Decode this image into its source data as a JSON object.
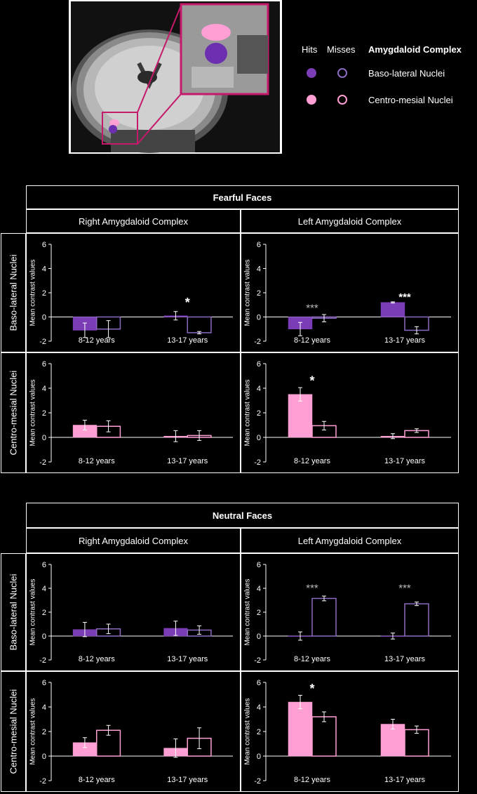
{
  "legend": {
    "hits_label": "Hits",
    "misses_label": "Misses",
    "title": "Amygdaloid Complex",
    "rows": [
      {
        "label": "Baso-lateral Nuclei",
        "color": "#7b3db5"
      },
      {
        "label": "Centro-mesial Nuclei",
        "color": "#ff9fd4"
      }
    ]
  },
  "colors": {
    "baso": "#7b3db5",
    "baso_outline": "#8c6ac0",
    "centro": "#ff9fd4",
    "white": "#ffffff"
  },
  "sections": [
    {
      "title": "Fearful Faces",
      "right_title": "Right Amygdaloid Complex",
      "left_title": "Left Amygdaloid Complex"
    },
    {
      "title": "Neutral Faces",
      "right_title": "Right Amygdaloid Complex",
      "left_title": "Left Amygdaloid Complex"
    }
  ],
  "row_labels": [
    "Baso-lateral Nuclei",
    "Centro-mesial Nuclei"
  ],
  "chart_data": [
    {
      "type": "bar",
      "section": "Fearful Faces",
      "hemisphere": "Right Amygdaloid Complex",
      "nucleus": "Baso-lateral Nuclei",
      "ylabel": "Mean contrast values",
      "ylim": [
        -2,
        6
      ],
      "yticks": [
        "6",
        "4",
        "2",
        "0",
        "-2"
      ],
      "categories": [
        "8-12 years",
        "13-17 years"
      ],
      "series": [
        {
          "name": "Hits",
          "values": [
            -1.1,
            0.1
          ],
          "errors": [
            0.6,
            0.35
          ]
        },
        {
          "name": "Misses",
          "values": [
            -1.0,
            -1.3
          ],
          "errors": [
            0.7,
            0.1
          ]
        }
      ],
      "annotations": [
        {
          "category": 1,
          "text": "*",
          "value": 1.2
        }
      ]
    },
    {
      "type": "bar",
      "section": "Fearful Faces",
      "hemisphere": "Left Amygdaloid Complex",
      "nucleus": "Baso-lateral Nuclei",
      "ylabel": "Mean contrast values",
      "ylim": [
        -2,
        6
      ],
      "yticks": [
        "6",
        "4",
        "2",
        "0",
        "-2"
      ],
      "categories": [
        "8-12 years",
        "13-17 years"
      ],
      "series": [
        {
          "name": "Hits",
          "values": [
            -1.0,
            1.2
          ],
          "errors": [
            0.55,
            0.05
          ]
        },
        {
          "name": "Misses",
          "values": [
            -0.1,
            -1.1
          ],
          "errors": [
            0.3,
            0.3
          ]
        }
      ],
      "annotations": [
        {
          "category": 0,
          "text": "***",
          "value": 0.8,
          "color": "#bbbbbb"
        },
        {
          "category": 1,
          "text": "***",
          "value": 1.7
        }
      ]
    },
    {
      "type": "bar",
      "section": "Fearful Faces",
      "hemisphere": "Right Amygdaloid Complex",
      "nucleus": "Centro-mesial Nuclei",
      "ylabel": "Mean contrast values",
      "ylim": [
        -2,
        6
      ],
      "yticks": [
        "6",
        "4",
        "2",
        "0",
        "-2"
      ],
      "categories": [
        "8-12 years",
        "13-17 years"
      ],
      "series": [
        {
          "name": "Hits",
          "values": [
            1.0,
            0.1
          ],
          "errors": [
            0.4,
            0.45
          ]
        },
        {
          "name": "Misses",
          "values": [
            0.9,
            0.15
          ],
          "errors": [
            0.45,
            0.4
          ]
        }
      ],
      "annotations": []
    },
    {
      "type": "bar",
      "section": "Fearful Faces",
      "hemisphere": "Left Amygdaloid Complex",
      "nucleus": "Centro-mesial Nuclei",
      "ylabel": "Mean contrast values",
      "ylim": [
        -2,
        6
      ],
      "yticks": [
        "6",
        "4",
        "2",
        "0",
        "-2"
      ],
      "categories": [
        "8-12 years",
        "13-17 years"
      ],
      "series": [
        {
          "name": "Hits",
          "values": [
            3.5,
            0.1
          ],
          "errors": [
            0.55,
            0.2
          ]
        },
        {
          "name": "Misses",
          "values": [
            0.95,
            0.55
          ],
          "errors": [
            0.35,
            0.15
          ]
        }
      ],
      "annotations": [
        {
          "category": 0,
          "text": "*",
          "value": 4.6
        }
      ]
    },
    {
      "type": "bar",
      "section": "Neutral Faces",
      "hemisphere": "Right Amygdaloid Complex",
      "nucleus": "Baso-lateral Nuclei",
      "ylabel": "Mean contrast values",
      "ylim": [
        -2,
        6
      ],
      "yticks": [
        "6",
        "4",
        "2",
        "0",
        "-2"
      ],
      "categories": [
        "8-12 years",
        "13-17 years"
      ],
      "series": [
        {
          "name": "Hits",
          "values": [
            0.55,
            0.65
          ],
          "errors": [
            0.6,
            0.6
          ]
        },
        {
          "name": "Misses",
          "values": [
            0.6,
            0.5
          ],
          "errors": [
            0.4,
            0.35
          ]
        }
      ],
      "annotations": []
    },
    {
      "type": "bar",
      "section": "Neutral Faces",
      "hemisphere": "Left Amygdaloid Complex",
      "nucleus": "Baso-lateral Nuclei",
      "ylabel": "Mean contrast values",
      "ylim": [
        -2,
        6
      ],
      "yticks": [
        "6",
        "4",
        "2",
        "0",
        "-2"
      ],
      "categories": [
        "8-12 years",
        "13-17 years"
      ],
      "series": [
        {
          "name": "Hits",
          "values": [
            0.0,
            0.0
          ],
          "errors": [
            0.35,
            0.25
          ]
        },
        {
          "name": "Misses",
          "values": [
            3.15,
            2.7
          ],
          "errors": [
            0.2,
            0.15
          ]
        }
      ],
      "annotations": [
        {
          "category": 0,
          "text": "***",
          "value": 4.1,
          "color": "#bbbbbb"
        },
        {
          "category": 1,
          "text": "***",
          "value": 4.1,
          "color": "#bbbbbb"
        }
      ]
    },
    {
      "type": "bar",
      "section": "Neutral Faces",
      "hemisphere": "Right Amygdaloid Complex",
      "nucleus": "Centro-mesial Nuclei",
      "ylabel": "Mean contrast values",
      "ylim": [
        -2,
        6
      ],
      "yticks": [
        "6",
        "4",
        "2",
        "0",
        "-2"
      ],
      "categories": [
        "8-12 years",
        "13-17 years"
      ],
      "series": [
        {
          "name": "Hits",
          "values": [
            1.1,
            0.65
          ],
          "errors": [
            0.4,
            0.75
          ]
        },
        {
          "name": "Misses",
          "values": [
            2.1,
            1.45
          ],
          "errors": [
            0.4,
            0.85
          ]
        }
      ],
      "annotations": []
    },
    {
      "type": "bar",
      "section": "Neutral Faces",
      "hemisphere": "Left Amygdaloid Complex",
      "nucleus": "Centro-mesial Nuclei",
      "ylabel": "Mean contrast values",
      "ylim": [
        -2,
        6
      ],
      "yticks": [
        "6",
        "4",
        "2",
        "0",
        "-2"
      ],
      "categories": [
        "8-12 years",
        "13-17 years"
      ],
      "series": [
        {
          "name": "Hits",
          "values": [
            4.4,
            2.6
          ],
          "errors": [
            0.55,
            0.4
          ]
        },
        {
          "name": "Misses",
          "values": [
            3.2,
            2.15
          ],
          "errors": [
            0.4,
            0.3
          ]
        }
      ],
      "annotations": [
        {
          "category": 0,
          "text": "*",
          "value": 5.5
        }
      ]
    }
  ]
}
